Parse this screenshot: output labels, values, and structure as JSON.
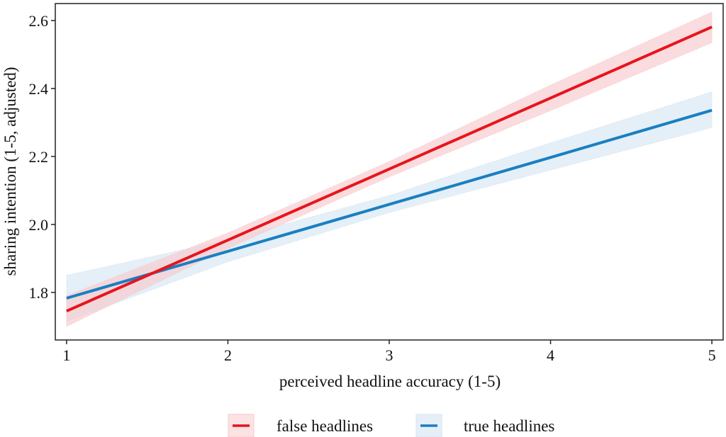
{
  "chart_data": {
    "type": "line",
    "title": "",
    "xlabel": "perceived headline accuracy (1-5)",
    "ylabel": "sharing intention (1-5, adjusted)",
    "xlim": [
      0.93,
      5.07
    ],
    "ylim": [
      1.66,
      2.65
    ],
    "x_ticks": [
      1,
      2,
      3,
      4,
      5
    ],
    "x_tick_labels": [
      "1",
      "2",
      "3",
      "4",
      "5"
    ],
    "y_ticks": [
      1.8,
      2.0,
      2.2,
      2.4,
      2.6
    ],
    "y_tick_labels": [
      "1.8",
      "2.0",
      "2.2",
      "2.4",
      "2.6"
    ],
    "grid": false,
    "legend_position": "bottom",
    "series": [
      {
        "name": "false headlines",
        "color": "#e8141c",
        "band_color": "#f7c9cc",
        "x": [
          1,
          2,
          3,
          4,
          5
        ],
        "y": [
          1.745,
          1.954,
          2.163,
          2.372,
          2.581
        ],
        "ci_lower": [
          1.7,
          1.93,
          2.14,
          2.335,
          2.535
        ],
        "ci_upper": [
          1.79,
          1.975,
          2.185,
          2.41,
          2.625
        ]
      },
      {
        "name": "true headlines",
        "color": "#1a7fc1",
        "band_color": "#d6e6f3",
        "x": [
          1,
          2,
          3,
          4,
          5
        ],
        "y": [
          1.783,
          1.921,
          2.059,
          2.197,
          2.336
        ],
        "ci_lower": [
          1.715,
          1.89,
          2.035,
          2.16,
          2.285
        ],
        "ci_upper": [
          1.85,
          1.955,
          2.085,
          2.24,
          2.39
        ]
      }
    ]
  }
}
